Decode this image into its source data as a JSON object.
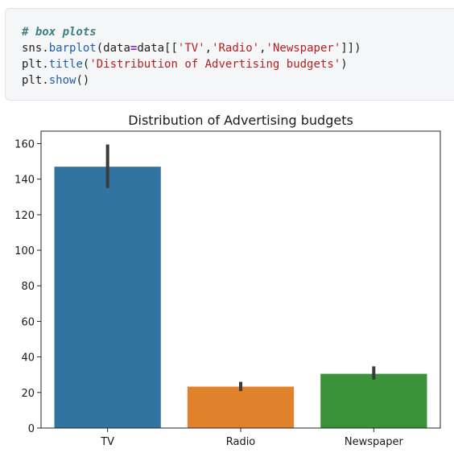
{
  "code_cell": {
    "lines": [
      [
        {
          "t": "# box plots",
          "c": "cm"
        }
      ],
      [
        {
          "t": "sns",
          "c": ""
        },
        {
          "t": ".",
          "c": ""
        },
        {
          "t": "barplot",
          "c": "fn"
        },
        {
          "t": "(data",
          "c": ""
        },
        {
          "t": "=",
          "c": "op"
        },
        {
          "t": "data[[",
          "c": ""
        },
        {
          "t": "'TV'",
          "c": "st"
        },
        {
          "t": ",",
          "c": ""
        },
        {
          "t": "'Radio'",
          "c": "st"
        },
        {
          "t": ",",
          "c": ""
        },
        {
          "t": "'Newspaper'",
          "c": "st"
        },
        {
          "t": "]])",
          "c": ""
        }
      ],
      [
        {
          "t": "plt",
          "c": ""
        },
        {
          "t": ".",
          "c": ""
        },
        {
          "t": "title",
          "c": "fn"
        },
        {
          "t": "(",
          "c": ""
        },
        {
          "t": "'Distribution of Advertising budgets'",
          "c": "st"
        },
        {
          "t": ")",
          "c": ""
        }
      ],
      [
        {
          "t": "plt",
          "c": ""
        },
        {
          "t": ".",
          "c": ""
        },
        {
          "t": "show",
          "c": "fn"
        },
        {
          "t": "()",
          "c": ""
        }
      ]
    ]
  },
  "chart_data": {
    "type": "bar",
    "title": "Distribution of Advertising budgets",
    "xlabel": "",
    "ylabel": "",
    "categories": [
      "TV",
      "Radio",
      "Newspaper"
    ],
    "values": [
      147.0,
      23.3,
      30.5
    ],
    "error_low": [
      135.0,
      20.8,
      27.3
    ],
    "error_high": [
      159.5,
      26.0,
      34.7
    ],
    "colors": [
      "#3274a1",
      "#e1812c",
      "#3a923a"
    ],
    "ylim": [
      0,
      167
    ],
    "yticks": [
      0,
      20,
      40,
      60,
      80,
      100,
      120,
      140,
      160
    ],
    "grid": false
  }
}
